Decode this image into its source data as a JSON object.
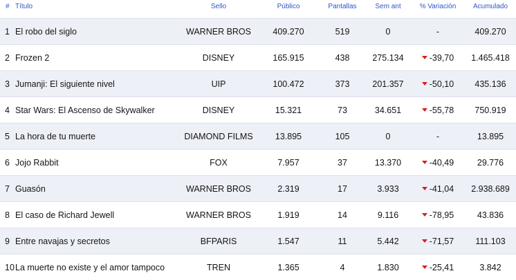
{
  "headers": {
    "rank": "#",
    "title": "Título",
    "label": "Sello",
    "public": "Público",
    "screens": "Pantallas",
    "prev_week": "Sem ant",
    "variation": "% Variación",
    "accumulated": "Acumulado"
  },
  "rows": [
    {
      "rank": "1",
      "title": "El robo del siglo",
      "label": "WARNER BROS",
      "public": "409.270",
      "screens": "519",
      "prev_week": "0",
      "variation": "-",
      "variation_down": false,
      "accumulated": "409.270"
    },
    {
      "rank": "2",
      "title": "Frozen 2",
      "label": "DISNEY",
      "public": "165.915",
      "screens": "438",
      "prev_week": "275.134",
      "variation": "-39,70",
      "variation_down": true,
      "accumulated": "1.465.418"
    },
    {
      "rank": "3",
      "title": "Jumanji: El siguiente nivel",
      "label": "UIP",
      "public": "100.472",
      "screens": "373",
      "prev_week": "201.357",
      "variation": "-50,10",
      "variation_down": true,
      "accumulated": "435.136"
    },
    {
      "rank": "4",
      "title": "Star Wars: El Ascenso de Skywalker",
      "label": "DISNEY",
      "public": "15.321",
      "screens": "73",
      "prev_week": "34.651",
      "variation": "-55,78",
      "variation_down": true,
      "accumulated": "750.919"
    },
    {
      "rank": "5",
      "title": "La hora de tu muerte",
      "label": "DIAMOND FILMS",
      "public": "13.895",
      "screens": "105",
      "prev_week": "0",
      "variation": "-",
      "variation_down": false,
      "accumulated": "13.895"
    },
    {
      "rank": "6",
      "title": "Jojo Rabbit",
      "label": "FOX",
      "public": "7.957",
      "screens": "37",
      "prev_week": "13.370",
      "variation": "-40,49",
      "variation_down": true,
      "accumulated": "29.776"
    },
    {
      "rank": "7",
      "title": "Guasón",
      "label": "WARNER BROS",
      "public": "2.319",
      "screens": "17",
      "prev_week": "3.933",
      "variation": "-41,04",
      "variation_down": true,
      "accumulated": "2.938.689"
    },
    {
      "rank": "8",
      "title": "El caso de Richard Jewell",
      "label": "WARNER BROS",
      "public": "1.919",
      "screens": "14",
      "prev_week": "9.116",
      "variation": "-78,95",
      "variation_down": true,
      "accumulated": "43.836"
    },
    {
      "rank": "9",
      "title": "Entre navajas y secretos",
      "label": "BFPARIS",
      "public": "1.547",
      "screens": "11",
      "prev_week": "5.442",
      "variation": "-71,57",
      "variation_down": true,
      "accumulated": "111.103"
    },
    {
      "rank": "10",
      "title": "La muerte no existe y el amor tampoco",
      "label": "TREN",
      "public": "1.365",
      "screens": "4",
      "prev_week": "1.830",
      "variation": "-25,41",
      "variation_down": true,
      "accumulated": "3.842"
    }
  ],
  "colors": {
    "header_text": "#2f55c8",
    "stripe": "#eef0f8",
    "down_arrow": "#d91e18"
  }
}
